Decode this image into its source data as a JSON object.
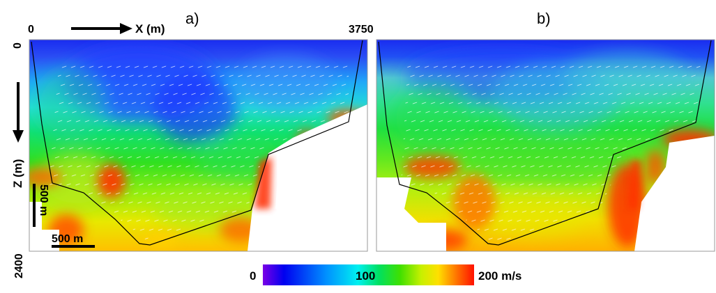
{
  "panels": [
    {
      "label": "a)"
    },
    {
      "label": "b)"
    }
  ],
  "axes": {
    "x_start": "0",
    "x_end": "3750",
    "x_label": "X (m)",
    "z_top": "0",
    "z_bottom": "2400",
    "z_label": "Z (m)"
  },
  "scale_bars": {
    "vertical": "500 m",
    "horizontal": "500 m"
  },
  "colorbar": {
    "min_label": "0",
    "mid_label": "100",
    "max_label": "200 m/s",
    "colors": [
      "#7a00e6",
      "#0000f0",
      "#0090ff",
      "#00f0f0",
      "#00e060",
      "#40e000",
      "#c8f000",
      "#ffe000",
      "#ff7000",
      "#ff1000"
    ]
  }
}
